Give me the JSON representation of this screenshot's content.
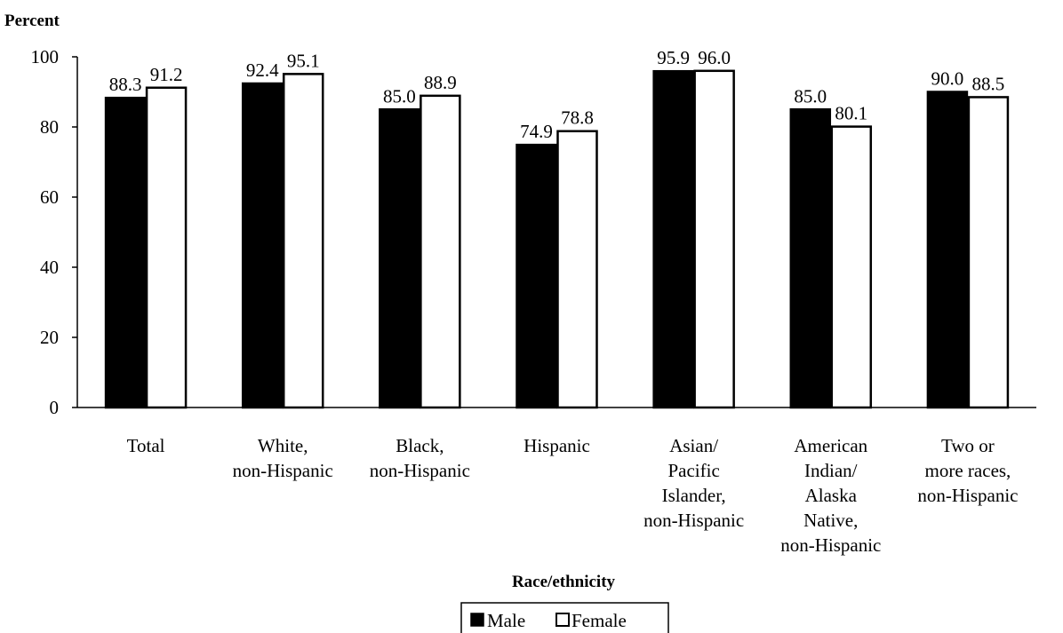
{
  "chart_data": {
    "type": "bar",
    "ylabel": "Percent",
    "xlabel": "Race/ethnicity",
    "ylim": [
      0,
      100
    ],
    "yticks": [
      0,
      20,
      40,
      60,
      80,
      100
    ],
    "grid": false,
    "legend_position": "bottom-center",
    "categories": [
      [
        "Total"
      ],
      [
        "White,",
        "non-Hispanic"
      ],
      [
        "Black,",
        "non-Hispanic"
      ],
      [
        "Hispanic"
      ],
      [
        "Asian/",
        "Pacific",
        "Islander,",
        "non-Hispanic"
      ],
      [
        "American",
        "Indian/",
        "Alaska",
        "Native,",
        "non-Hispanic"
      ],
      [
        "Two or",
        "more races,",
        "non-Hispanic"
      ]
    ],
    "series": [
      {
        "name": "Male",
        "color": "#000000",
        "values": [
          88.3,
          92.4,
          85.0,
          74.9,
          95.9,
          85.0,
          90.0
        ],
        "labels": [
          "88.3",
          "92.4",
          "85.0",
          "74.9",
          "95.9",
          "85.0",
          "90.0"
        ]
      },
      {
        "name": "Female",
        "color": "#ffffff",
        "values": [
          91.2,
          95.1,
          88.9,
          78.8,
          96.0,
          80.1,
          88.5
        ],
        "labels": [
          "91.2",
          "95.1",
          "88.9",
          "78.8",
          "96.0",
          "80.1",
          "88.5"
        ]
      }
    ]
  }
}
